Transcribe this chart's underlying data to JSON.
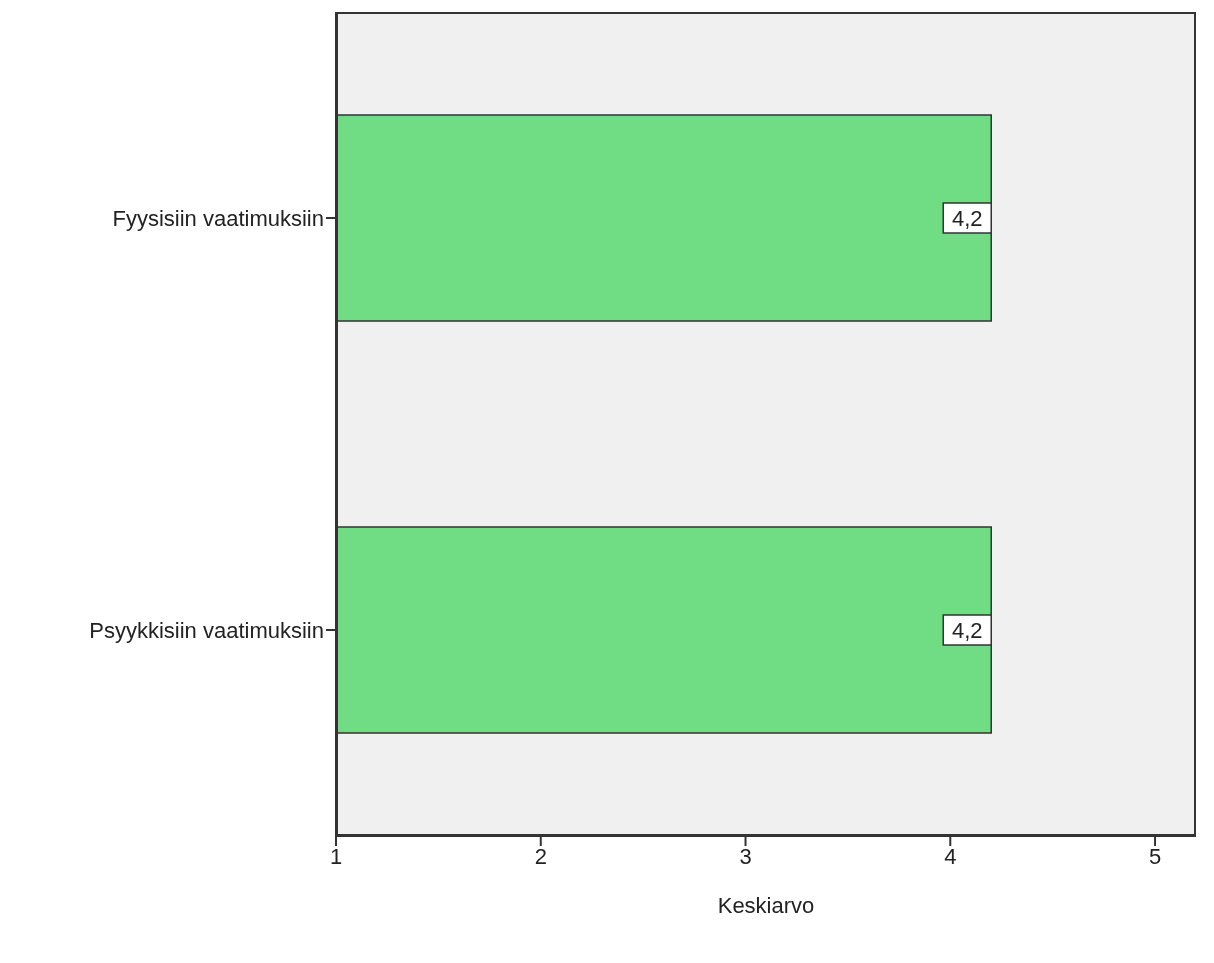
{
  "chart_data": {
    "type": "bar",
    "orientation": "horizontal",
    "xlabel": "Keskiarvo",
    "categories": [
      "Fyysisiin vaatimuksiin",
      "Psyykkisiin vaatimuksiin"
    ],
    "values": [
      4.2,
      4.2
    ],
    "value_labels": [
      "4,2",
      "4,2"
    ],
    "color": "#70dc84",
    "xlim": [
      1,
      5.2
    ],
    "xticks": [
      1,
      2,
      3,
      4,
      5
    ],
    "grid": false
  }
}
